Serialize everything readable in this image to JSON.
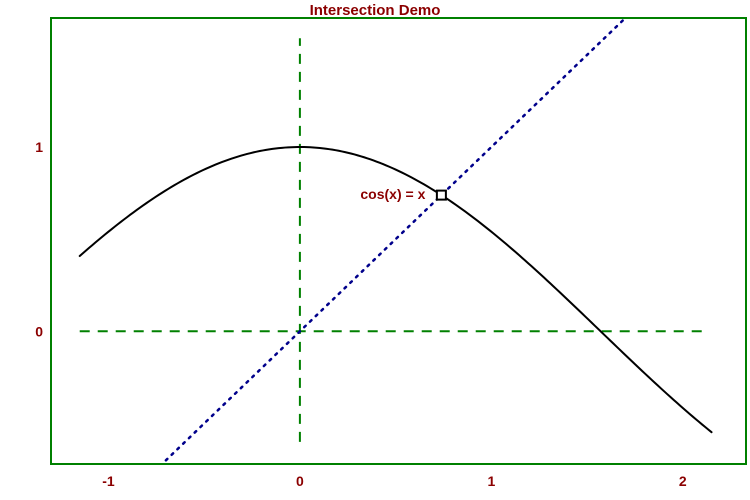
{
  "chart_data": {
    "type": "line",
    "title": "Intersection Demo",
    "xlabel": "",
    "ylabel": "",
    "xlim": [
      -1.3,
      2.33
    ],
    "ylim": [
      -0.72,
      1.7
    ],
    "x_ticks": [
      {
        "value": -1,
        "label": "-1"
      },
      {
        "value": 0,
        "label": "0"
      },
      {
        "value": 1,
        "label": "1"
      },
      {
        "value": 2,
        "label": "2"
      }
    ],
    "y_ticks": [
      {
        "value": 0,
        "label": "0"
      },
      {
        "value": 1,
        "label": "1"
      }
    ],
    "series": [
      {
        "function": "cos(x)",
        "x_range": [
          -1.15,
          2.15
        ],
        "color": "#000000",
        "style": "solid"
      },
      {
        "function": "x",
        "x_range": [
          -0.7,
          1.7
        ],
        "color": "#00008b",
        "style": "dotted"
      }
    ],
    "reference_lines": [
      {
        "orientation": "horizontal",
        "value": 0,
        "x_range": [
          -1.15,
          2.12
        ],
        "color": "#008000",
        "style": "dashed"
      },
      {
        "orientation": "vertical",
        "value": 0,
        "y_range": [
          -0.6,
          1.59
        ],
        "color": "#008000",
        "style": "dashed"
      }
    ],
    "annotations": [
      {
        "label": "cos(x) = x",
        "x": 0.739,
        "y": 0.739,
        "marker": "square"
      }
    ],
    "grid": false
  },
  "colors": {
    "frame": "#008000",
    "text": "#8b0000",
    "curve": "#000000",
    "identity_line": "#00008b",
    "reference": "#008000",
    "background": "#ffffff"
  }
}
